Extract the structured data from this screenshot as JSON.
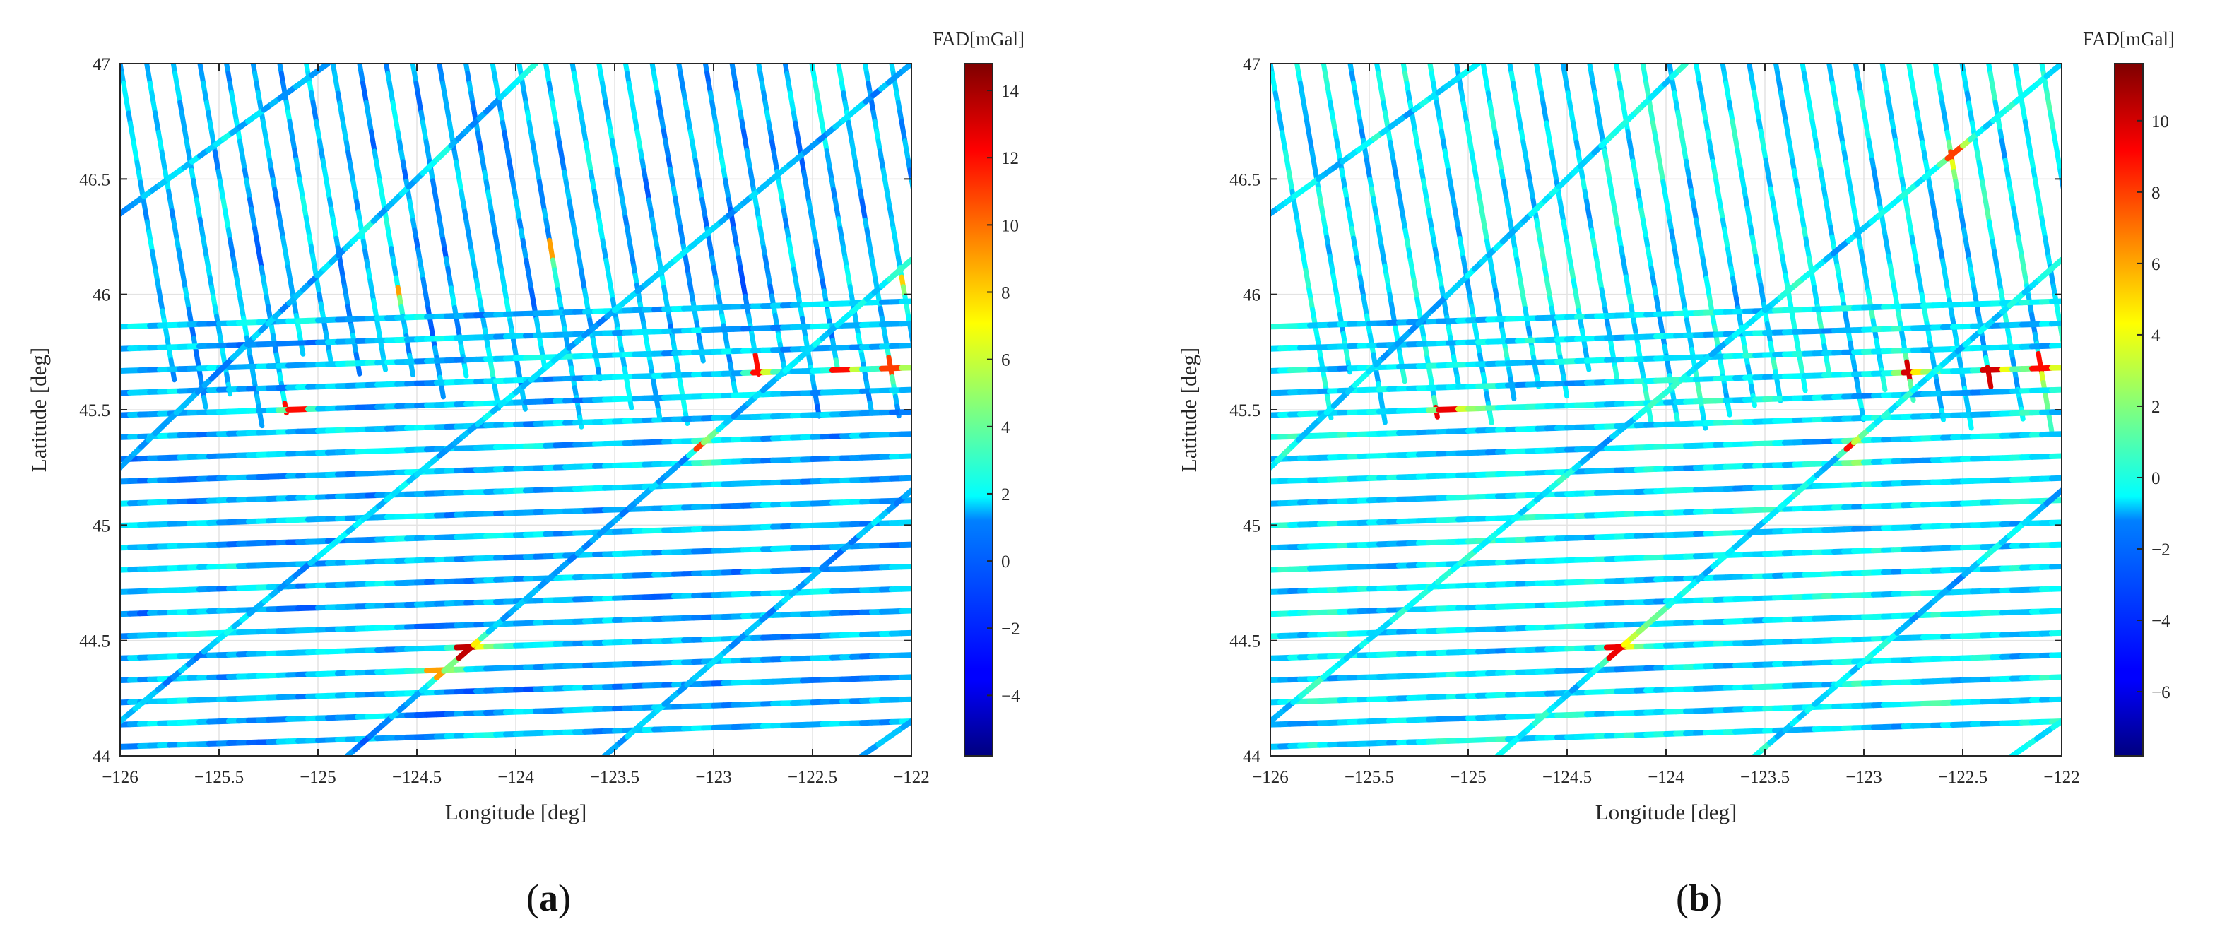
{
  "chart_data": [
    {
      "type": "scatter",
      "panel_label": {
        "open": "(",
        "letter": "a",
        "close": ")"
      },
      "xlabel": "Longitude [deg]",
      "ylabel": "Latitude [deg]",
      "xlim": [
        -126,
        -122
      ],
      "ylim": [
        44,
        47
      ],
      "xticks": [
        -126,
        -125.5,
        -125,
        -124.5,
        -124,
        -123.5,
        -123,
        -122.5,
        -122
      ],
      "yticks": [
        44,
        44.5,
        45,
        45.5,
        46,
        46.5,
        47
      ],
      "grid": true,
      "colorbar": {
        "label": "FAD[mGal]",
        "range": [
          -5.8,
          14.8
        ],
        "ticks": [
          -4,
          -2,
          0,
          2,
          4,
          6,
          8,
          10,
          12,
          14
        ],
        "colormap": "jet",
        "placement": "right"
      },
      "tracks": {
        "east_west": {
          "count": 20,
          "lat_start": 44.04,
          "lat_end": 45.86,
          "lon_range": [
            -126,
            -122
          ],
          "dlat_across_range": 0.11
        },
        "north_south": {
          "count": 30,
          "lon_start": -126.0,
          "lon_end": -122.1,
          "lat_range": [
            45.4,
            47.0
          ],
          "dlon_across_range": -0.32
        },
        "diagonal": [
          {
            "from": [
              -126.0,
              46.35
            ],
            "to": [
              -124.95,
              47.0
            ]
          },
          {
            "from": [
              -126.0,
              45.25
            ],
            "to": [
              -123.9,
              47.0
            ]
          },
          {
            "from": [
              -126.0,
              44.15
            ],
            "to": [
              -122.0,
              47.0
            ]
          },
          {
            "from": [
              -124.85,
              44.0
            ],
            "to": [
              -122.0,
              46.15
            ]
          },
          {
            "from": [
              -123.55,
              44.0
            ],
            "to": [
              -122.0,
              45.15
            ]
          },
          {
            "from": [
              -122.25,
              44.0
            ],
            "to": [
              -122.0,
              44.15
            ]
          }
        ],
        "highlights": [
          {
            "lon": -124.25,
            "lat": 44.46,
            "value": 13.5
          },
          {
            "lon": -124.4,
            "lat": 44.38,
            "value": 9
          },
          {
            "lon": -123.05,
            "lat": 45.32,
            "value": 11
          },
          {
            "lon": -125.12,
            "lat": 45.5,
            "value": 12
          },
          {
            "lon": -122.34,
            "lat": 45.65,
            "value": 12
          },
          {
            "lon": -122.1,
            "lat": 45.7,
            "value": 11
          },
          {
            "lon": -123.85,
            "lat": 46.18,
            "value": 9
          },
          {
            "lon": -122.05,
            "lat": 46.05,
            "value": 8
          },
          {
            "lon": -124.62,
            "lat": 46.0,
            "value": 9
          },
          {
            "lon": -122.78,
            "lat": 45.68,
            "value": 12
          }
        ],
        "mean_value": 0.5
      }
    },
    {
      "type": "scatter",
      "panel_label": {
        "open": "(",
        "letter": "b",
        "close": ")"
      },
      "xlabel": "Longitude [deg]",
      "ylabel": "Latitude [deg]",
      "xlim": [
        -126,
        -122
      ],
      "ylim": [
        44,
        47
      ],
      "xticks": [
        -126,
        -125.5,
        -125,
        -124.5,
        -124,
        -123.5,
        -123,
        -122.5,
        -122
      ],
      "yticks": [
        44,
        44.5,
        45,
        45.5,
        46,
        46.5,
        47
      ],
      "grid": true,
      "colorbar": {
        "label": "FAD[mGal]",
        "range": [
          -7.8,
          11.6
        ],
        "ticks": [
          -6,
          -4,
          -2,
          0,
          2,
          4,
          6,
          8,
          10
        ],
        "colormap": "jet",
        "placement": "right"
      },
      "tracks": {
        "east_west": {
          "count": 20,
          "lat_start": 44.04,
          "lat_end": 45.86,
          "lon_range": [
            -126,
            -122
          ],
          "dlat_across_range": 0.11
        },
        "north_south": {
          "count": 30,
          "lon_start": -126.0,
          "lon_end": -122.1,
          "lat_range": [
            45.4,
            47.0
          ],
          "dlon_across_range": -0.32
        },
        "diagonal": [
          {
            "from": [
              -126.0,
              46.35
            ],
            "to": [
              -124.95,
              47.0
            ]
          },
          {
            "from": [
              -126.0,
              45.25
            ],
            "to": [
              -123.9,
              47.0
            ]
          },
          {
            "from": [
              -126.0,
              44.15
            ],
            "to": [
              -122.0,
              47.0
            ]
          },
          {
            "from": [
              -124.85,
              44.0
            ],
            "to": [
              -122.0,
              46.15
            ]
          },
          {
            "from": [
              -123.55,
              44.0
            ],
            "to": [
              -122.0,
              45.15
            ]
          },
          {
            "from": [
              -122.25,
              44.0
            ],
            "to": [
              -122.0,
              44.15
            ]
          }
        ],
        "highlights": [
          {
            "lon": -124.25,
            "lat": 44.46,
            "value": 9.5
          },
          {
            "lon": -123.05,
            "lat": 45.32,
            "value": 9
          },
          {
            "lon": -125.12,
            "lat": 45.5,
            "value": 9.5
          },
          {
            "lon": -122.34,
            "lat": 45.65,
            "value": 10
          },
          {
            "lon": -122.1,
            "lat": 45.7,
            "value": 9
          },
          {
            "lon": -122.55,
            "lat": 46.6,
            "value": 8
          },
          {
            "lon": -122.78,
            "lat": 45.68,
            "value": 10
          }
        ],
        "mean_value": -1
      }
    }
  ]
}
